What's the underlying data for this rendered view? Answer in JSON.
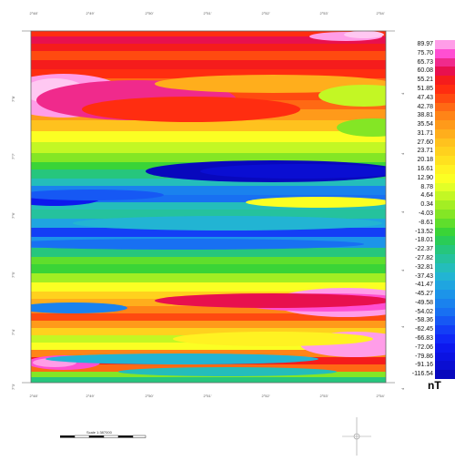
{
  "map": {
    "legend_unit": "nT",
    "legend_labels": [
      "89.97",
      "75.70",
      "65.73",
      "60.08",
      "55.21",
      "51.85",
      "47.43",
      "42.78",
      "38.81",
      "35.54",
      "31.71",
      "27.60",
      "23.71",
      "20.18",
      "16.61",
      "12.90",
      "8.78",
      "4.64",
      "0.34",
      "-4.03",
      "-8.61",
      "-13.52",
      "-18.01",
      "-22.37",
      "-27.82",
      "-32.81",
      "-37.43",
      "-41.47",
      "-45.27",
      "-49.58",
      "-54.02",
      "-58.36",
      "-62.45",
      "-66.83",
      "-72.06",
      "-79.86",
      "-91.16",
      "-116.54"
    ],
    "legend_colors": [
      "#ff9de8",
      "#ff4fd2",
      "#f02a8c",
      "#e8104e",
      "#f51c1c",
      "#ff2d10",
      "#ff4a10",
      "#ff6914",
      "#ff8417",
      "#ff9a1a",
      "#ffae1c",
      "#ffc21e",
      "#ffd11e",
      "#ffe11f",
      "#fff222",
      "#fbff23",
      "#e2ff27",
      "#c3f724",
      "#a3ee23",
      "#84e625",
      "#5fde2c",
      "#3ad437",
      "#2acc57",
      "#26c67d",
      "#25c29d",
      "#24bdbb",
      "#22b4d3",
      "#1fa5e0",
      "#1c94e9",
      "#1a82ee",
      "#1870f2",
      "#1658f4",
      "#133ef6",
      "#1028f6",
      "#0d18ee",
      "#0b12e2",
      "#0a0ed2",
      "#0808bd"
    ],
    "scale_text": "Scale 1:387000",
    "top_ticks": [
      "2°48'",
      "2°49'",
      "2°50'",
      "2°51'",
      "2°52'",
      "2°53'",
      "2°54'"
    ],
    "bottom_ticks": [
      "2°48'",
      "2°49'",
      "2°50'",
      "2°51'",
      "2°52'",
      "2°53'",
      "2°54'"
    ],
    "left_ticks": [
      "7°8'",
      "7°7'",
      "7°6'",
      "7°5'",
      "7°4'",
      "7°3'"
    ],
    "right_ticks": [
      "4",
      "4",
      "4",
      "4",
      "4",
      "4"
    ]
  }
}
